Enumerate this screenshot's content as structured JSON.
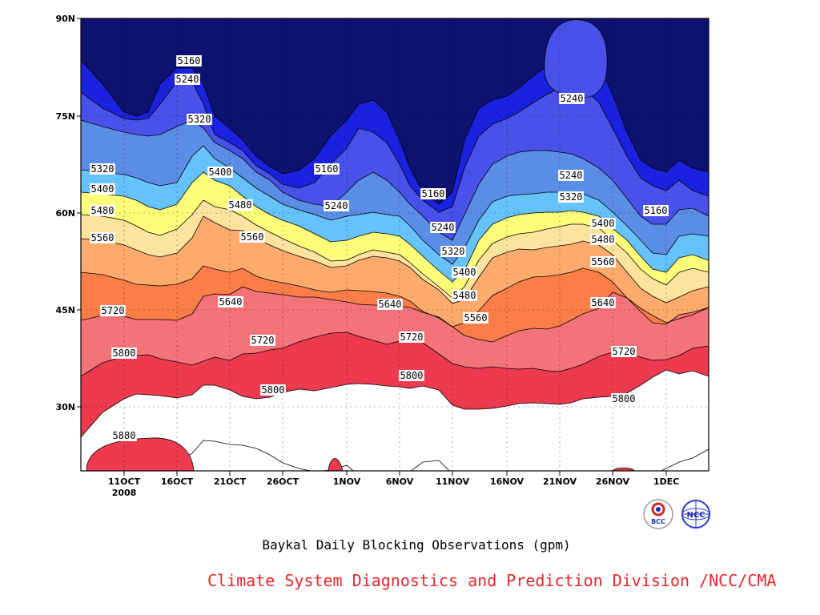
{
  "chart_data": {
    "type": "contour",
    "title": "Baykal Daily Blocking Observations (gpm)",
    "credit": "Climate System Diagnostics and Prediction Division /NCC/CMA",
    "x_ticks": [
      "11OCT",
      "16OCT",
      "21OCT",
      "26OCT",
      "1NOV",
      "6NOV",
      "11NOV",
      "16NOV",
      "21NOV",
      "26NOV",
      "1DEC"
    ],
    "x_year_label": "2008",
    "y_ticks": [
      "30N",
      "45N",
      "60N",
      "75N",
      "90N"
    ],
    "grid": true,
    "contour_levels": [
      5160,
      5240,
      5320,
      5400,
      5480,
      5560,
      5640,
      5720,
      5800,
      5880
    ],
    "band_colors": [
      "#0d1270",
      "#1a22e0",
      "#4a50ea",
      "#5a8ee6",
      "#66c2fa",
      "#fdfd7a",
      "#fde49e",
      "#fdab6c",
      "#fb7d48",
      "#f47378",
      "#ee3a4e"
    ],
    "contour_labels": [
      {
        "value": "5160"
      },
      {
        "value": "5240"
      },
      {
        "value": "5320"
      },
      {
        "value": "5320"
      },
      {
        "value": "5400"
      },
      {
        "value": "5480"
      },
      {
        "value": "5560"
      },
      {
        "value": "5400"
      },
      {
        "value": "5480"
      },
      {
        "value": "5560"
      },
      {
        "value": "5640"
      },
      {
        "value": "5720"
      },
      {
        "value": "5720"
      },
      {
        "value": "5800"
      },
      {
        "value": "5800"
      },
      {
        "value": "5880"
      },
      {
        "value": "5160"
      },
      {
        "value": "5240"
      },
      {
        "value": "5640"
      },
      {
        "value": "5720"
      },
      {
        "value": "5800"
      },
      {
        "value": "5160"
      },
      {
        "value": "5240"
      },
      {
        "value": "5320"
      },
      {
        "value": "5400"
      },
      {
        "value": "5480"
      },
      {
        "value": "5560"
      },
      {
        "value": "5240"
      },
      {
        "value": "5240"
      },
      {
        "value": "5320"
      },
      {
        "value": "5400"
      },
      {
        "value": "5480"
      },
      {
        "value": "5560"
      },
      {
        "value": "5640"
      },
      {
        "value": "5720"
      },
      {
        "value": "5800"
      },
      {
        "value": "5160"
      }
    ]
  },
  "logos": {
    "left": "BCC",
    "right": "NCC"
  }
}
